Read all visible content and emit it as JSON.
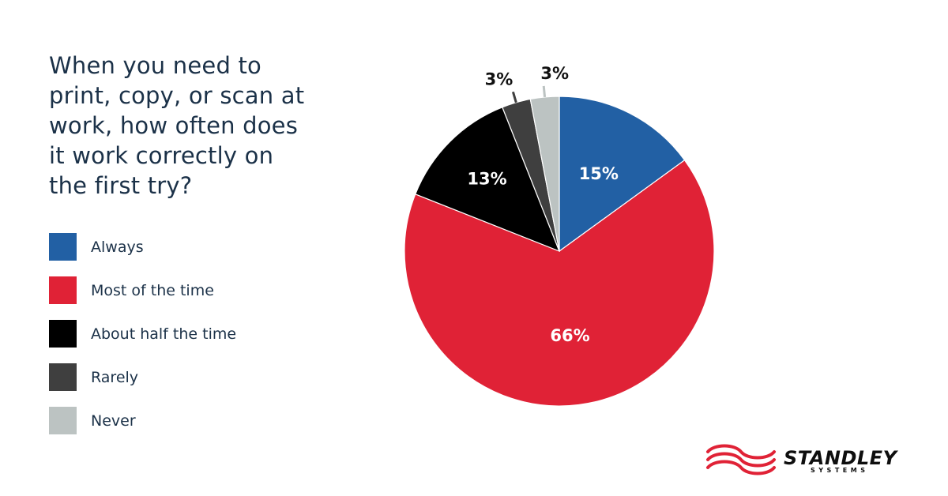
{
  "question": "When you need to print, copy, or scan at work, how often does it work correctly on the first try?",
  "chart_data": {
    "type": "pie",
    "title": "When you need to print, copy, or scan at work, how often does it work correctly on the first try?",
    "slices": [
      {
        "label": "Always",
        "value": 15,
        "display": "15%",
        "color": "#2260a4"
      },
      {
        "label": "Most of the time",
        "value": 66,
        "display": "66%",
        "color": "#e02236"
      },
      {
        "label": "About half the time",
        "value": 13,
        "display": "13%",
        "color": "#000000"
      },
      {
        "label": "Rarely",
        "value": 3,
        "display": "3%",
        "color": "#3f3f3f"
      },
      {
        "label": "Never",
        "value": 3,
        "display": "3%",
        "color": "#bcc3c2"
      }
    ],
    "start_angle": "12 o'clock",
    "direction": "clockwise",
    "legend_position": "left"
  },
  "brand": {
    "name": "STANDLEY",
    "sub": "SYSTEMS",
    "color": "#e02236"
  }
}
